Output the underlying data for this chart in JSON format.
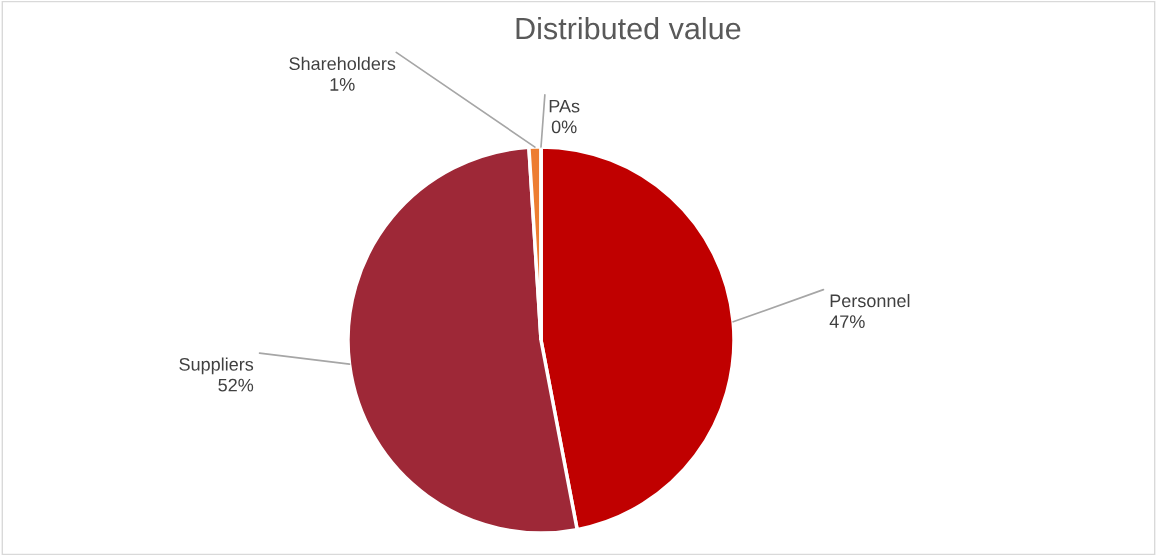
{
  "chart_data": {
    "type": "pie",
    "title": "Distributed value",
    "categories": [
      "Personnel",
      "Suppliers",
      "Shareholders",
      "PAs"
    ],
    "values": [
      47,
      52,
      1,
      0
    ],
    "colors": [
      "#c00000",
      "#9e2837",
      "#ed7d31",
      "#ffc000"
    ],
    "value_labels": [
      "47%",
      "52%",
      "1%",
      "0%"
    ]
  }
}
